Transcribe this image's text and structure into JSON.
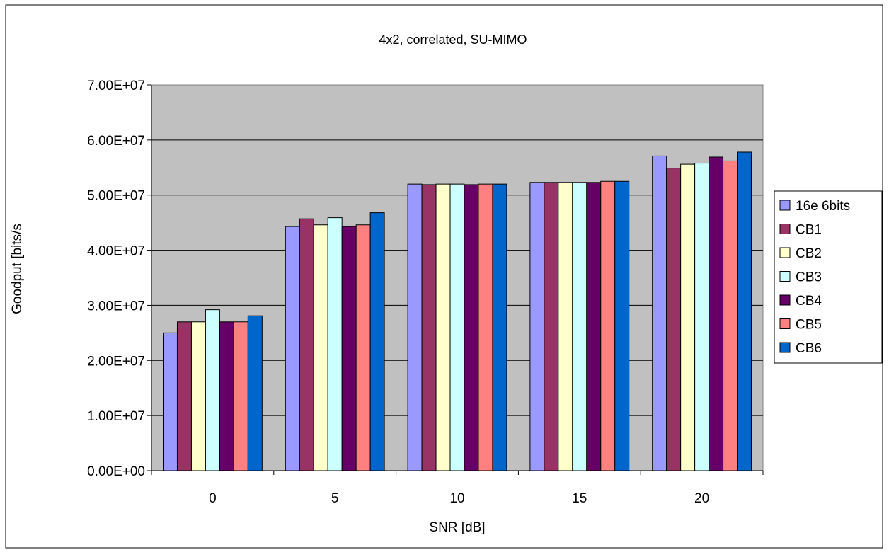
{
  "chart_data": {
    "type": "bar",
    "title": "4x2, correlated, SU-MIMO",
    "xlabel": "SNR [dB]",
    "ylabel": "Goodput [bits/s",
    "categories": [
      "0",
      "5",
      "10",
      "15",
      "20"
    ],
    "ylim": [
      0,
      70000000
    ],
    "yticks": [
      0,
      10000000,
      20000000,
      30000000,
      40000000,
      50000000,
      60000000,
      70000000
    ],
    "ytick_labels": [
      "0.00E+00",
      "1.00E+07",
      "2.00E+07",
      "3.00E+07",
      "4.00E+07",
      "5.00E+07",
      "6.00E+07",
      "7.00E+07"
    ],
    "grid": "horizontal major gridlines",
    "legend_position": "right",
    "plot_background": "#c0c0c0",
    "series": [
      {
        "name": "16e 6bits",
        "color": "#9999ff",
        "values": [
          25000000,
          44300000,
          52000000,
          52300000,
          57100000
        ]
      },
      {
        "name": "CB1",
        "color": "#993366",
        "values": [
          27000000,
          45700000,
          51900000,
          52300000,
          54900000
        ]
      },
      {
        "name": "CB2",
        "color": "#ffffcc",
        "values": [
          27000000,
          44600000,
          52000000,
          52300000,
          55600000
        ]
      },
      {
        "name": "CB3",
        "color": "#ccffff",
        "values": [
          29200000,
          45900000,
          52000000,
          52300000,
          55800000
        ]
      },
      {
        "name": "CB4",
        "color": "#660066",
        "values": [
          27000000,
          44300000,
          51900000,
          52300000,
          56900000
        ]
      },
      {
        "name": "CB5",
        "color": "#ff8080",
        "values": [
          27000000,
          44600000,
          52000000,
          52500000,
          56200000
        ]
      },
      {
        "name": "CB6",
        "color": "#0066cc",
        "values": [
          28100000,
          46800000,
          52000000,
          52500000,
          57800000
        ]
      }
    ]
  }
}
